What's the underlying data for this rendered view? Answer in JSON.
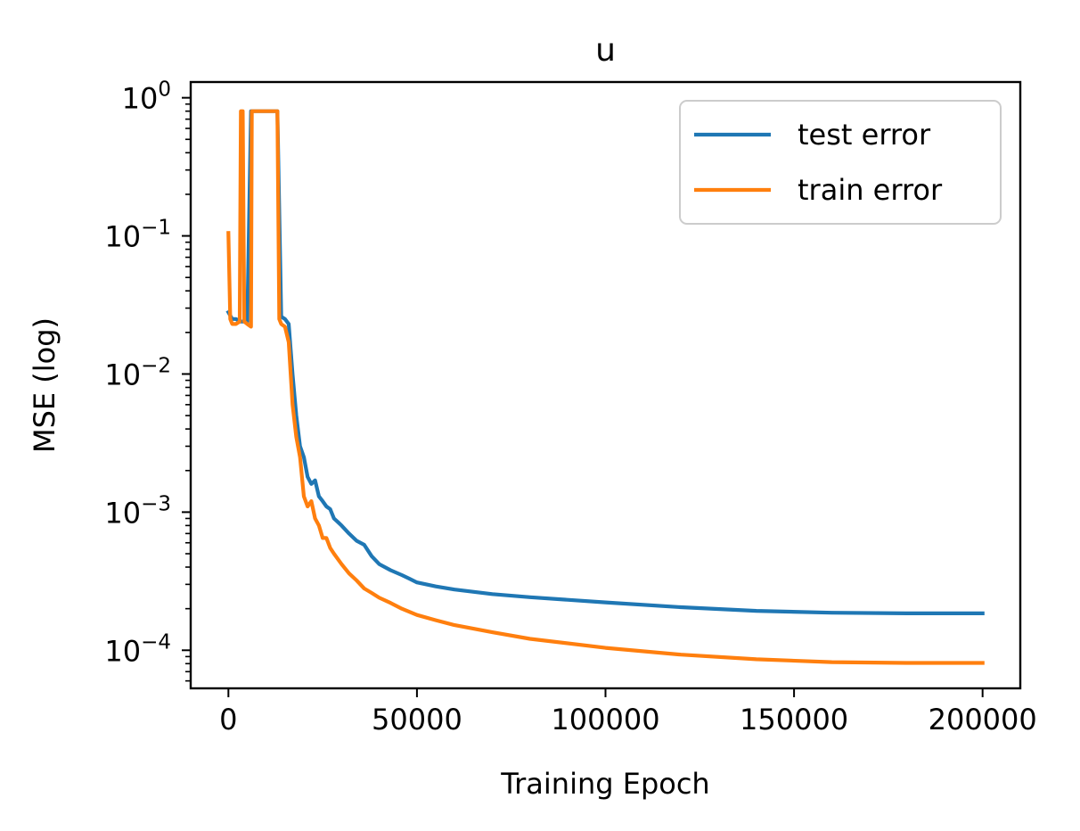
{
  "chart_data": {
    "type": "line",
    "title": "u",
    "xlabel": "Training Epoch",
    "ylabel": "MSE (log)",
    "xlim": [
      -10000,
      210000
    ],
    "ylim": [
      5.3e-05,
      1.3
    ],
    "yscale": "log",
    "grid": false,
    "legend_position": "top-right",
    "x_ticks": [
      {
        "value": 0,
        "label": "0"
      },
      {
        "value": 50000,
        "label": "50000"
      },
      {
        "value": 100000,
        "label": "100000"
      },
      {
        "value": 150000,
        "label": "150000"
      },
      {
        "value": 200000,
        "label": "200000"
      }
    ],
    "y_ticks": [
      {
        "value": 0.0001,
        "base": "10",
        "exp": "−4"
      },
      {
        "value": 0.001,
        "base": "10",
        "exp": "−3"
      },
      {
        "value": 0.01,
        "base": "10",
        "exp": "−2"
      },
      {
        "value": 0.1,
        "base": "10",
        "exp": "−1"
      },
      {
        "value": 1,
        "base": "10",
        "exp": "0"
      }
    ],
    "series": [
      {
        "name": "test error",
        "color": "#1f77b4",
        "points": [
          [
            0,
            0.028
          ],
          [
            1000,
            0.025
          ],
          [
            2000,
            0.025
          ],
          [
            3000,
            0.024
          ],
          [
            4000,
            0.024
          ],
          [
            5000,
            0.024
          ],
          [
            6000,
            0.8
          ],
          [
            8000,
            0.8
          ],
          [
            10000,
            0.8
          ],
          [
            12000,
            0.8
          ],
          [
            13000,
            0.8
          ],
          [
            14000,
            0.026
          ],
          [
            15000,
            0.025
          ],
          [
            16000,
            0.023
          ],
          [
            17000,
            0.01
          ],
          [
            18000,
            0.005
          ],
          [
            19000,
            0.003
          ],
          [
            20000,
            0.0025
          ],
          [
            21000,
            0.0018
          ],
          [
            22000,
            0.0016
          ],
          [
            23000,
            0.0017
          ],
          [
            24000,
            0.0013
          ],
          [
            25000,
            0.0012
          ],
          [
            26000,
            0.0011
          ],
          [
            27000,
            0.00105
          ],
          [
            28000,
            0.0009
          ],
          [
            29000,
            0.00085
          ],
          [
            30000,
            0.0008
          ],
          [
            32000,
            0.0007
          ],
          [
            34000,
            0.00062
          ],
          [
            36000,
            0.00058
          ],
          [
            38000,
            0.00048
          ],
          [
            40000,
            0.00042
          ],
          [
            43000,
            0.00038
          ],
          [
            46000,
            0.00035
          ],
          [
            48000,
            0.00033
          ],
          [
            50000,
            0.00031
          ],
          [
            55000,
            0.00029
          ],
          [
            60000,
            0.000275
          ],
          [
            70000,
            0.000255
          ],
          [
            80000,
            0.000242
          ],
          [
            100000,
            0.000222
          ],
          [
            120000,
            0.000205
          ],
          [
            140000,
            0.000193
          ],
          [
            160000,
            0.000187
          ],
          [
            180000,
            0.000185
          ],
          [
            200000,
            0.000185
          ]
        ]
      },
      {
        "name": "train error",
        "color": "#ff7f0e",
        "points": [
          [
            0,
            0.105
          ],
          [
            500,
            0.025
          ],
          [
            1000,
            0.023
          ],
          [
            2000,
            0.023
          ],
          [
            3000,
            0.024
          ],
          [
            3300,
            0.8
          ],
          [
            3800,
            0.8
          ],
          [
            4200,
            0.024
          ],
          [
            5000,
            0.023
          ],
          [
            6000,
            0.022
          ],
          [
            6200,
            0.8
          ],
          [
            8000,
            0.8
          ],
          [
            10000,
            0.8
          ],
          [
            12000,
            0.8
          ],
          [
            13000,
            0.8
          ],
          [
            13500,
            0.025
          ],
          [
            14000,
            0.023
          ],
          [
            15000,
            0.022
          ],
          [
            16000,
            0.017
          ],
          [
            17000,
            0.006
          ],
          [
            18000,
            0.0035
          ],
          [
            19000,
            0.0025
          ],
          [
            20000,
            0.0013
          ],
          [
            21000,
            0.0011
          ],
          [
            22000,
            0.0012
          ],
          [
            23000,
            0.0009
          ],
          [
            24000,
            0.0008
          ],
          [
            25000,
            0.00065
          ],
          [
            26000,
            0.00065
          ],
          [
            27000,
            0.00055
          ],
          [
            28000,
            0.0005
          ],
          [
            30000,
            0.00042
          ],
          [
            32000,
            0.00036
          ],
          [
            34000,
            0.00032
          ],
          [
            36000,
            0.00028
          ],
          [
            38000,
            0.00026
          ],
          [
            40000,
            0.00024
          ],
          [
            43000,
            0.00022
          ],
          [
            46000,
            0.0002
          ],
          [
            50000,
            0.00018
          ],
          [
            55000,
            0.000165
          ],
          [
            60000,
            0.000152
          ],
          [
            70000,
            0.000135
          ],
          [
            80000,
            0.000121
          ],
          [
            100000,
            0.000104
          ],
          [
            120000,
            9.3e-05
          ],
          [
            140000,
            8.6e-05
          ],
          [
            160000,
            8.2e-05
          ],
          [
            180000,
            8.1e-05
          ],
          [
            200000,
            8.1e-05
          ]
        ]
      }
    ]
  }
}
